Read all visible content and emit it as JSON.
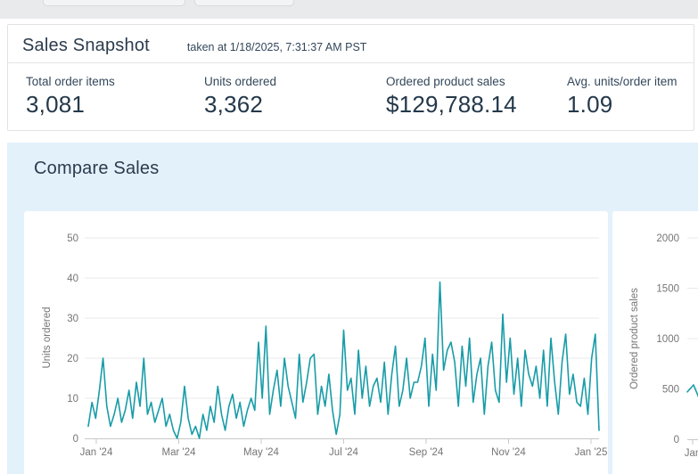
{
  "colors": {
    "accent_teal": "#189ca8",
    "panel_blue": "#e3f1fb",
    "heading_navy": "#2b3b4d",
    "value_navy": "#24384a",
    "axis_gray": "#757575",
    "grid_gray": "#e8e8e8",
    "axis_line_gray": "#c8c8c8"
  },
  "snapshot": {
    "title": "Sales Snapshot",
    "subtitle": "taken at 1/18/2025, 7:31:37 AM PST",
    "metrics": [
      {
        "label": "Total order items",
        "value": "3,081"
      },
      {
        "label": "Units ordered",
        "value": "3,362"
      },
      {
        "label": "Ordered product sales",
        "value": "$129,788.14"
      },
      {
        "label": "Avg. units/order item",
        "value": "1.09"
      }
    ]
  },
  "compare": {
    "title": "Compare Sales"
  },
  "chart_data": [
    {
      "type": "line",
      "ylabel": "Units ordered",
      "yticks": [
        0,
        10,
        20,
        30,
        40,
        50
      ],
      "ylim": [
        0,
        50
      ],
      "xtick_labels": [
        "Jan '24",
        "Mar '24",
        "May '24",
        "Jul '24",
        "Sep '24",
        "Nov '24",
        "Jan '25"
      ],
      "grid": "horizontal gridlines on",
      "legend": "none",
      "values": [
        3,
        9,
        5,
        12,
        20,
        8,
        3,
        6,
        10,
        4,
        7,
        12,
        5,
        14,
        8,
        20,
        6,
        9,
        4,
        7,
        10,
        3,
        6,
        2,
        0,
        4,
        13,
        5,
        1,
        3,
        0,
        6,
        2,
        8,
        4,
        13,
        6,
        2,
        8,
        11,
        5,
        9,
        3,
        7,
        10,
        7,
        24,
        10,
        28,
        6,
        12,
        17,
        8,
        20,
        13,
        9,
        5,
        21,
        9,
        14,
        20,
        21,
        6,
        13,
        8,
        16,
        7,
        1,
        6,
        27,
        12,
        15,
        6,
        22,
        10,
        18,
        8,
        13,
        15,
        9,
        19,
        6,
        16,
        23,
        8,
        12,
        20,
        10,
        14,
        14,
        18,
        25,
        8,
        21,
        12,
        39,
        17,
        22,
        24,
        19,
        8,
        23,
        13,
        25,
        9,
        16,
        20,
        6,
        18,
        24,
        12,
        9,
        31,
        14,
        25,
        11,
        20,
        8,
        22,
        16,
        13,
        18,
        10,
        22,
        8,
        25,
        14,
        6,
        19,
        26,
        11,
        16,
        9,
        8,
        15,
        6,
        20,
        26,
        2
      ]
    },
    {
      "type": "line",
      "ylabel": "Ordered product sales",
      "yticks": [
        0,
        500,
        1000,
        1500,
        2000
      ],
      "ylim": [
        0,
        2000
      ],
      "xtick_labels": [
        "Jan"
      ],
      "grid": "horizontal gridlines on",
      "legend": "none",
      "layout_note": "chart clipped at right edge of viewport; only axis and first data points visible",
      "values": [
        470,
        540,
        390
      ]
    }
  ]
}
